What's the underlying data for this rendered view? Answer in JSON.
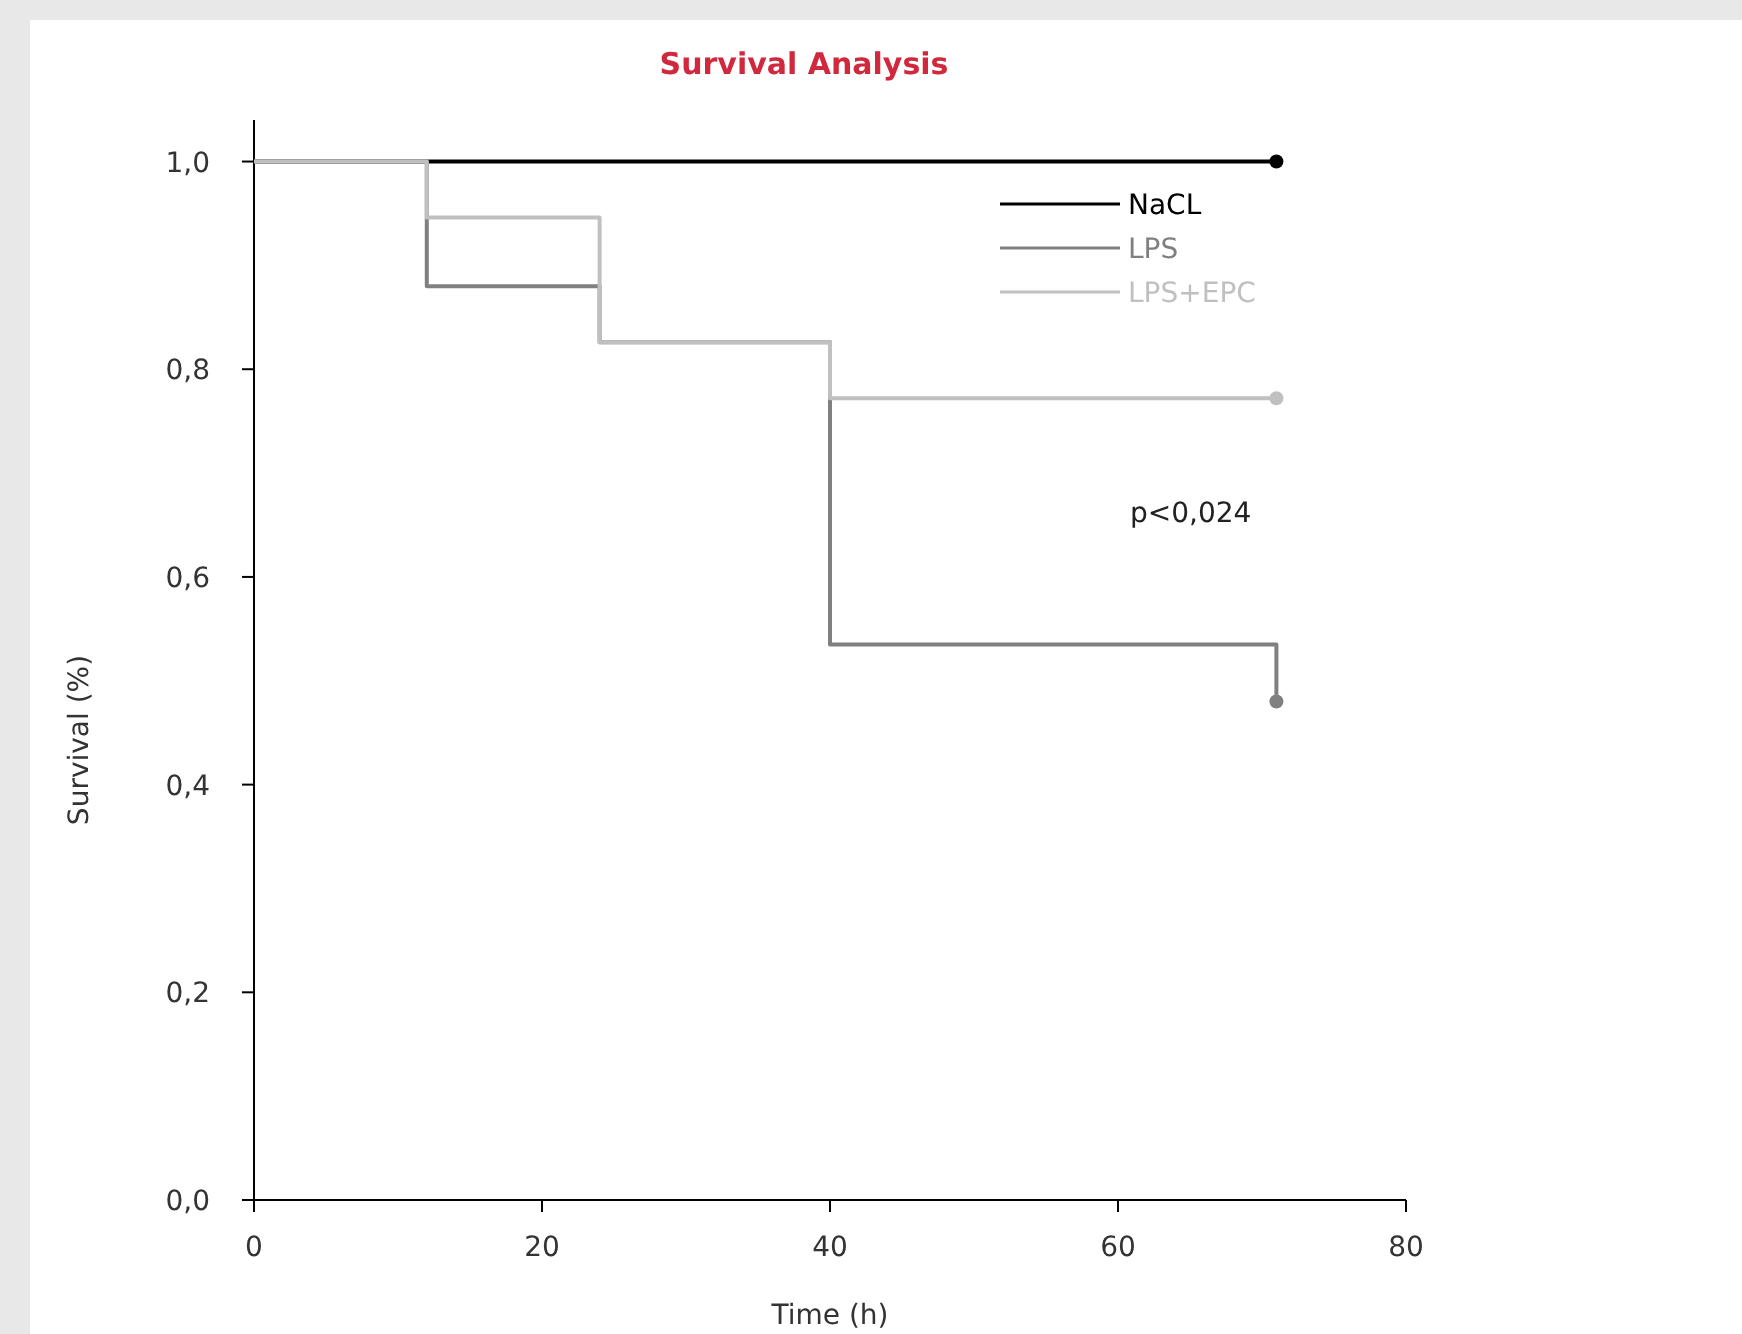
{
  "chart_data": {
    "type": "step",
    "title": "Survival Analysis",
    "xlabel": "Time (h)",
    "ylabel": "Survival (%)",
    "xlim": [
      0,
      80
    ],
    "xticks": [
      0,
      20,
      40,
      60,
      80
    ],
    "ylim": [
      0,
      1.04
    ],
    "yticks": [
      {
        "value": 0,
        "label": "0,0"
      },
      {
        "value": 0.2,
        "label": "0,2"
      },
      {
        "value": 0.4,
        "label": "0,4"
      },
      {
        "value": 0.6,
        "label": "0,6"
      },
      {
        "value": 0.8,
        "label": "0,8"
      },
      {
        "value": 1,
        "label": "1,0"
      }
    ],
    "grid": false,
    "legend": "top right",
    "series": [
      {
        "name": "NaCL",
        "color": "#000000",
        "x": [
          0,
          12,
          71
        ],
        "values": [
          1,
          1,
          1
        ]
      },
      {
        "name": "LPS",
        "color": "#808080",
        "x": [
          0,
          12,
          24,
          40,
          71
        ],
        "values": [
          1,
          0.88,
          0.826,
          0.535,
          0.48
        ]
      },
      {
        "name": "LPS+EPC",
        "color": "#c0c0c0",
        "x": [
          0,
          12,
          24,
          40,
          71
        ],
        "values": [
          1,
          0.946,
          0.826,
          0.772,
          0.772
        ]
      }
    ],
    "annotations": [
      "p<0,024"
    ]
  }
}
